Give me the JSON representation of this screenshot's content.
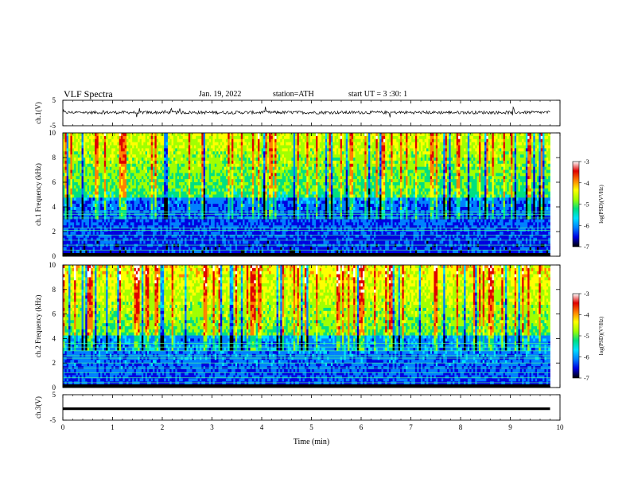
{
  "header": {
    "title": "VLF Spectra",
    "date": "Jan. 19, 2022",
    "station": "station=ATH",
    "start": "start UT =   3 :30: 1"
  },
  "chart_data": [
    {
      "type": "line",
      "ylabel": "ch.1(V)",
      "ylim": [
        -5,
        5
      ],
      "yticks": [
        "5",
        "-5"
      ],
      "baseline": 0.2,
      "xlim": [
        0,
        10
      ],
      "data_extent_min": 9.8
    },
    {
      "type": "heatmap",
      "ylabel": "ch.1 Frequency (kHz)",
      "ylim": [
        0,
        10
      ],
      "yticks": [
        "0",
        "2",
        "4",
        "6",
        "8",
        "10"
      ],
      "xlim": [
        0,
        10
      ],
      "colorbar": {
        "label": "log(PSD)(V²/Hz)",
        "range": [
          -7,
          -3
        ],
        "ticks": [
          "-3",
          "-4",
          "-5",
          "-6",
          "-7"
        ],
        "colors": [
          "#000000",
          "#0000e0",
          "#0080ff",
          "#00e0ff",
          "#00e080",
          "#a0ff00",
          "#ffff00",
          "#ff8000",
          "#e00000",
          "#ffffff"
        ]
      }
    },
    {
      "type": "heatmap",
      "ylabel": "ch.2 Frequency (kHz)",
      "ylim": [
        0,
        10
      ],
      "yticks": [
        "0",
        "2",
        "4",
        "6",
        "8",
        "10"
      ],
      "xlim": [
        0,
        10
      ],
      "colorbar": {
        "label": "log(PSD)(V²/Hz)",
        "range": [
          -7,
          -3
        ],
        "ticks": [
          "-3",
          "-4",
          "-5",
          "-6",
          "-7"
        ],
        "colors": [
          "#000000",
          "#0000e0",
          "#0080ff",
          "#00e0ff",
          "#00e080",
          "#a0ff00",
          "#ffff00",
          "#ff8000",
          "#e00000",
          "#ffffff"
        ]
      }
    },
    {
      "type": "line",
      "ylabel": "ch.3(V)",
      "ylim": [
        -5,
        5
      ],
      "yticks": [
        "5",
        "-5"
      ],
      "baseline": -0.5,
      "xlim": [
        0,
        10
      ],
      "xlabel": "Time (min)",
      "xticks": [
        "0",
        "1",
        "2",
        "3",
        "4",
        "5",
        "6",
        "7",
        "8",
        "9",
        "10"
      ],
      "data_extent_min": 9.8
    }
  ]
}
